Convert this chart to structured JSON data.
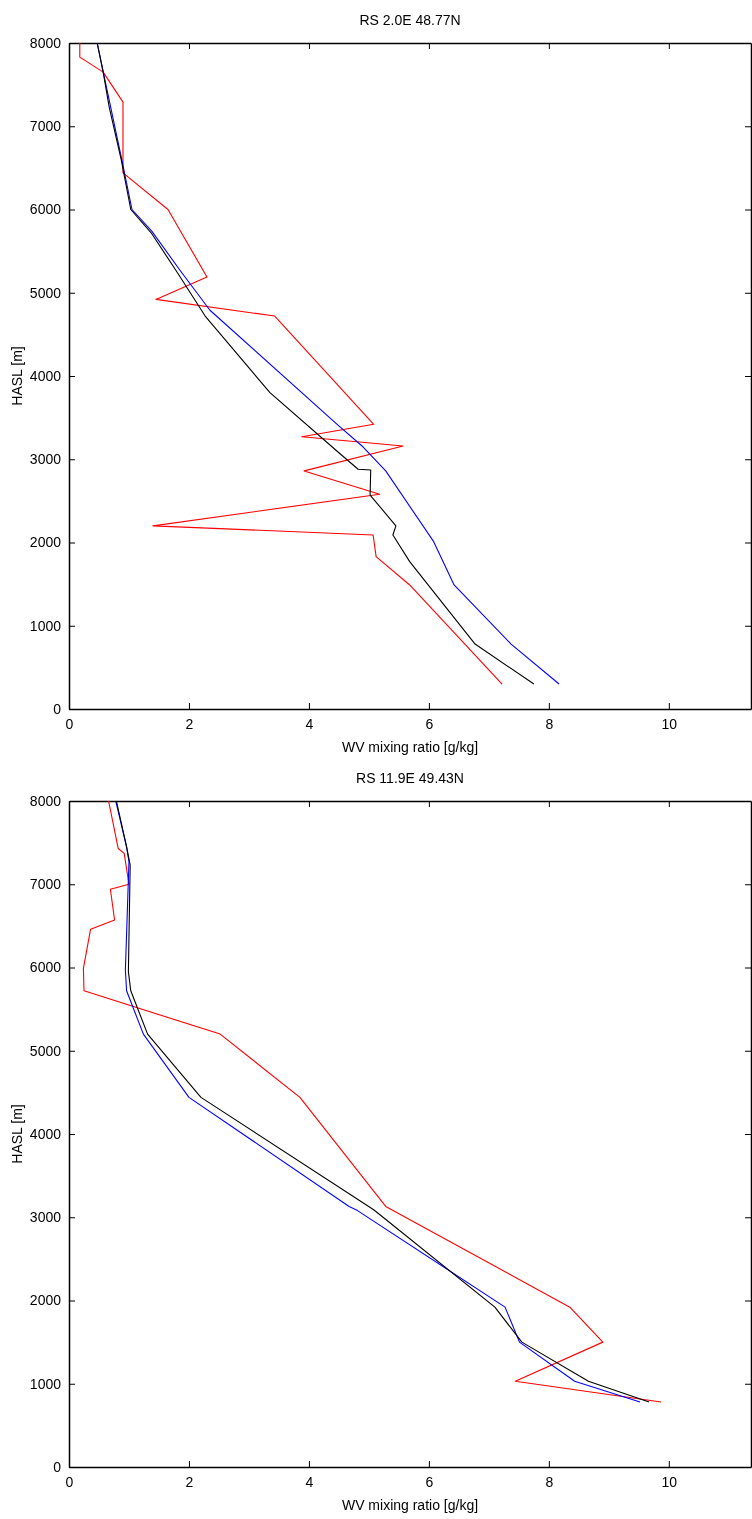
{
  "chart_data": [
    {
      "type": "line",
      "title": "RS 2.0E 48.77N",
      "xlabel": "WV mixing ratio [g/kg]",
      "ylabel": "HASL [m]",
      "xlim": [
        0,
        11.37
      ],
      "ylim": [
        0,
        8000
      ],
      "xticks": [
        0,
        2,
        4,
        6,
        8,
        10
      ],
      "yticks": [
        0,
        1000,
        2000,
        3000,
        4000,
        5000,
        6000,
        7000,
        8000
      ],
      "grid": false,
      "series": [
        {
          "color": "#ff0000",
          "x": [
            0.18,
            0.18,
            0.57,
            0.9,
            0.9,
            1.65,
            2.3,
            1.45,
            3.43,
            5.08,
            3.88,
            5.57,
            3.92,
            5.18,
            1.4,
            5.07,
            5.12,
            5.68,
            7.22
          ],
          "values": [
            8000,
            7830,
            7650,
            7290,
            6440,
            6000,
            5190,
            4920,
            4720,
            3420,
            3270,
            3160,
            2860,
            2580,
            2200,
            2090,
            1830,
            1490,
            300
          ]
        },
        {
          "color": "#0000ff",
          "x": [
            0.47,
            0.58,
            0.88,
            1.05,
            1.38,
            1.85,
            2.35,
            4.47,
            4.9,
            5.28,
            6.08,
            6.42,
            7.37,
            8.17
          ],
          "values": [
            8000,
            7620,
            6600,
            6000,
            5740,
            5270,
            4790,
            3420,
            3150,
            2860,
            2010,
            1490,
            780,
            300
          ]
        },
        {
          "color": "#000000",
          "x": [
            0.47,
            0.57,
            0.67,
            0.87,
            1.03,
            1.37,
            1.8,
            2.27,
            3.35,
            4.48,
            4.82,
            5.03,
            5.02,
            5.45,
            5.4,
            5.68,
            6.77,
            7.75
          ],
          "values": [
            8000,
            7650,
            7230,
            6600,
            6000,
            5720,
            5250,
            4720,
            3800,
            3090,
            2880,
            2870,
            2570,
            2200,
            2090,
            1770,
            780,
            300
          ]
        }
      ]
    },
    {
      "type": "line",
      "title": "RS 11.9E 49.43N",
      "xlabel": "WV mixing ratio [g/kg]",
      "ylabel": "HASL [m]",
      "xlim": [
        0,
        11.37
      ],
      "ylim": [
        0,
        8000
      ],
      "xticks": [
        0,
        2,
        4,
        6,
        8,
        10
      ],
      "yticks": [
        0,
        1000,
        2000,
        3000,
        4000,
        5000,
        6000,
        7000,
        8000
      ],
      "grid": false,
      "series": [
        {
          "color": "#ff0000",
          "x": [
            0.66,
            0.82,
            0.92,
            1.0,
            0.69,
            0.76,
            0.36,
            0.24,
            0.25,
            2.52,
            3.85,
            5.28,
            8.35,
            8.9,
            7.44,
            9.87
          ],
          "values": [
            8000,
            7430,
            7370,
            7000,
            6940,
            6570,
            6460,
            5990,
            5720,
            5200,
            4440,
            3130,
            1920,
            1500,
            1030,
            780
          ]
        },
        {
          "color": "#0000ff",
          "x": [
            0.78,
            0.96,
            1.0,
            0.94,
            0.96,
            1.24,
            2.0,
            4.67,
            4.81,
            7.27,
            7.51,
            8.43,
            9.52
          ],
          "values": [
            8000,
            7450,
            7270,
            5970,
            5720,
            5200,
            4440,
            3130,
            3080,
            1920,
            1500,
            1030,
            780
          ]
        },
        {
          "color": "#000000",
          "x": [
            0.79,
            0.96,
            1.02,
            0.99,
            1.03,
            1.31,
            2.2,
            5.08,
            7.1,
            7.55,
            8.66,
            9.67
          ],
          "values": [
            8000,
            7450,
            7230,
            5950,
            5720,
            5200,
            4440,
            3090,
            1920,
            1500,
            1030,
            780
          ]
        }
      ]
    }
  ]
}
